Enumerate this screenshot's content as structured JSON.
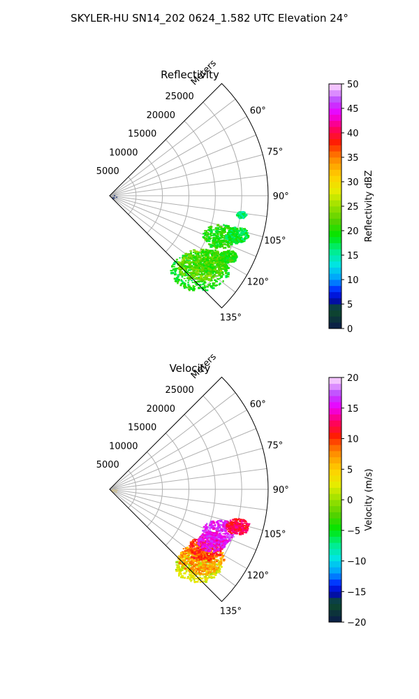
{
  "figure": {
    "suptitle": "SKYLER-HU  SN14_202  0624_1.582 UTC Elevation 24°"
  },
  "chart_data": [
    {
      "type": "polar-sector",
      "title": "Reflectivity",
      "range_label": "Meters",
      "range_ticks": [
        "5000",
        "10000",
        "15000",
        "20000",
        "25000"
      ],
      "range_tick_values": [
        5000,
        10000,
        15000,
        20000,
        25000
      ],
      "rmax": 30000,
      "azimuth_range_deg": [
        45,
        135
      ],
      "azimuth_ticks": [
        "60°",
        "75°",
        "90°",
        "105°",
        "120°",
        "135°"
      ],
      "azimuth_tick_values": [
        60,
        75,
        90,
        105,
        120,
        135
      ],
      "grid": true,
      "colorbar": {
        "label": "Reflectivity dBZ",
        "min": 0,
        "max": 50,
        "ticks": [
          "0",
          "5",
          "10",
          "15",
          "20",
          "25",
          "30",
          "35",
          "40",
          "45",
          "50"
        ],
        "tick_values": [
          0,
          5,
          10,
          15,
          20,
          25,
          30,
          35,
          40,
          45,
          50
        ]
      },
      "echoes": [
        {
          "az": 130,
          "range_m": 22000,
          "extent_m": 5000,
          "value": 19
        },
        {
          "az": 127,
          "range_m": 21500,
          "extent_m": 4000,
          "value": 23
        },
        {
          "az": 123,
          "range_m": 22500,
          "extent_m": 3000,
          "value": 21
        },
        {
          "az": 117,
          "range_m": 25000,
          "extent_m": 1500,
          "value": 20
        },
        {
          "az": 110,
          "range_m": 22000,
          "extent_m": 3000,
          "value": 20
        },
        {
          "az": 107,
          "range_m": 25000,
          "extent_m": 2000,
          "value": 18
        },
        {
          "az": 98,
          "range_m": 25000,
          "extent_m": 800,
          "value": 16
        }
      ]
    },
    {
      "type": "polar-sector",
      "title": "Velocity",
      "range_label": "Meters",
      "range_ticks": [
        "5000",
        "10000",
        "15000",
        "20000",
        "25000"
      ],
      "range_tick_values": [
        5000,
        10000,
        15000,
        20000,
        25000
      ],
      "rmax": 30000,
      "azimuth_range_deg": [
        45,
        135
      ],
      "azimuth_ticks": [
        "60°",
        "75°",
        "90°",
        "105°",
        "120°",
        "135°"
      ],
      "azimuth_tick_values": [
        60,
        75,
        90,
        105,
        120,
        135
      ],
      "grid": true,
      "colorbar": {
        "label": "Velocity (m/s)",
        "min": -20,
        "max": 20,
        "ticks": [
          "−20",
          "−15",
          "−10",
          "−5",
          "0",
          "5",
          "10",
          "15",
          "20"
        ],
        "tick_values": [
          -20,
          -15,
          -10,
          -5,
          0,
          5,
          10,
          15,
          20
        ]
      },
      "echoes": [
        {
          "az": 131,
          "range_m": 22000,
          "extent_m": 4000,
          "value": 2
        },
        {
          "az": 127,
          "range_m": 21500,
          "extent_m": 4000,
          "value": 7
        },
        {
          "az": 122,
          "range_m": 21000,
          "extent_m": 3000,
          "value": 10
        },
        {
          "az": 117,
          "range_m": 21500,
          "extent_m": 2500,
          "value": 15
        },
        {
          "az": 111,
          "range_m": 22000,
          "extent_m": 3000,
          "value": 16
        },
        {
          "az": 106,
          "range_m": 25000,
          "extent_m": 2000,
          "value": 12
        }
      ]
    }
  ]
}
